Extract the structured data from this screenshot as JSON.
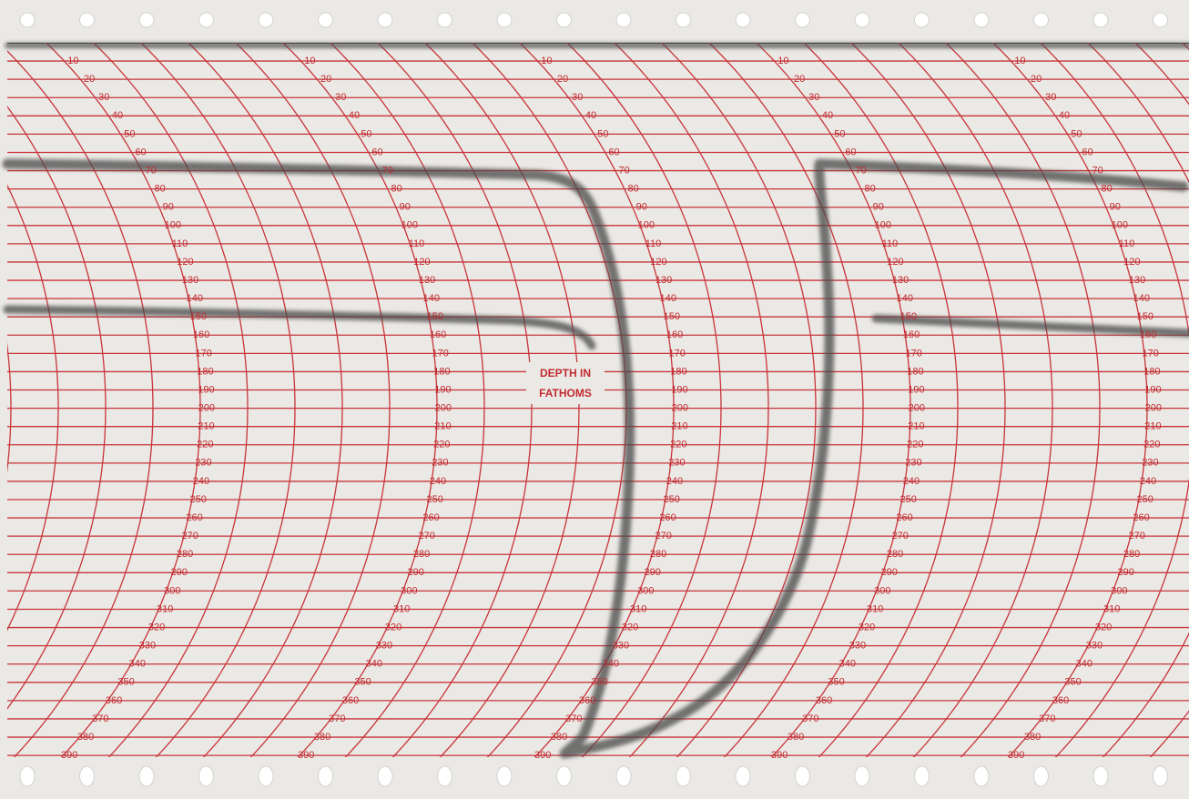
{
  "depth_scale": {
    "labels": [
      10,
      20,
      30,
      40,
      50,
      60,
      70,
      80,
      90,
      100,
      110,
      120,
      130,
      140,
      150,
      160,
      170,
      180,
      190,
      200,
      210,
      220,
      230,
      240,
      250,
      260,
      270,
      280,
      290,
      300,
      310,
      320,
      330,
      340,
      350,
      360,
      370,
      380,
      390
    ]
  },
  "caption": {
    "line1": "DEPTH IN",
    "line2": "FATHOMS"
  }
}
